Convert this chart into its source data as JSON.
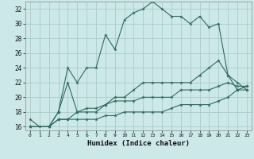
{
  "title": "",
  "xlabel": "Humidex (Indice chaleur)",
  "background_color": "#cce8e8",
  "grid_color": "#aacccc",
  "line_color": "#2d6b5e",
  "xlim": [
    -0.5,
    23.5
  ],
  "ylim": [
    15.5,
    33.0
  ],
  "xticks": [
    0,
    1,
    2,
    3,
    4,
    5,
    6,
    7,
    8,
    9,
    10,
    11,
    12,
    13,
    14,
    15,
    16,
    17,
    18,
    19,
    20,
    21,
    22,
    23
  ],
  "yticks": [
    16,
    18,
    20,
    22,
    24,
    26,
    28,
    30,
    32
  ],
  "series1_x": [
    0,
    1,
    2,
    3,
    4,
    5,
    6,
    7,
    8,
    9,
    10,
    11,
    12,
    13,
    14,
    15,
    16,
    17,
    18,
    19,
    20,
    21,
    22,
    23
  ],
  "series1_y": [
    17,
    16,
    16,
    18,
    24,
    22,
    24,
    24,
    28.5,
    26.5,
    30.5,
    31.5,
    32,
    33,
    32,
    31,
    31,
    30,
    31,
    29.5,
    30,
    23,
    22,
    21
  ],
  "series2_x": [
    0,
    2,
    3,
    4,
    5,
    6,
    7,
    8,
    9,
    10,
    11,
    12,
    13,
    14,
    15,
    16,
    17,
    18,
    19,
    20,
    21,
    22,
    23
  ],
  "series2_y": [
    16,
    16,
    18,
    22,
    18,
    18,
    18,
    19,
    20,
    20,
    21,
    22,
    22,
    22,
    22,
    22,
    22,
    23,
    24,
    25,
    23,
    21,
    21
  ],
  "series3_x": [
    0,
    2,
    3,
    4,
    5,
    6,
    7,
    8,
    9,
    10,
    11,
    12,
    13,
    14,
    15,
    16,
    17,
    18,
    19,
    20,
    21,
    22,
    23
  ],
  "series3_y": [
    16,
    16,
    17,
    17,
    18,
    18.5,
    18.5,
    19,
    19.5,
    19.5,
    19.5,
    20,
    20,
    20,
    20,
    21,
    21,
    21,
    21,
    21.5,
    22,
    21.5,
    21.5
  ],
  "series4_x": [
    0,
    2,
    3,
    4,
    5,
    6,
    7,
    8,
    9,
    10,
    11,
    12,
    13,
    14,
    15,
    16,
    17,
    18,
    19,
    20,
    21,
    22,
    23
  ],
  "series4_y": [
    16,
    16,
    17,
    17,
    17,
    17,
    17,
    17.5,
    17.5,
    18,
    18,
    18,
    18,
    18,
    18.5,
    19,
    19,
    19,
    19,
    19.5,
    20,
    21,
    21.5
  ]
}
